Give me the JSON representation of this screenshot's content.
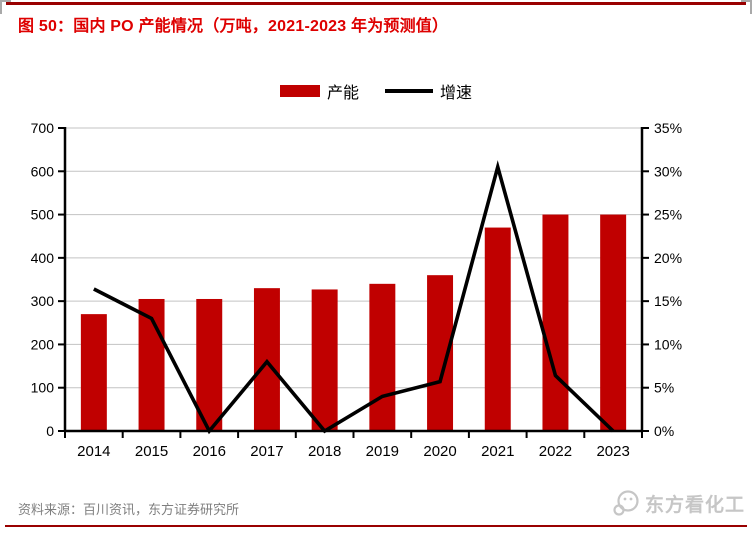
{
  "header": {
    "title": "图 50：国内 PO 产能情况（万吨，2021-2023 年为预测值）"
  },
  "legend": {
    "items": [
      {
        "label": "产能",
        "swatch": "bar",
        "color": "#c00000"
      },
      {
        "label": "增速",
        "swatch": "line",
        "color": "#000000"
      }
    ]
  },
  "chart_data": {
    "type": "bar+line",
    "title": "国内 PO 产能情况（万吨，2021-2023 年为预测值）",
    "categories": [
      "2014",
      "2015",
      "2016",
      "2017",
      "2018",
      "2019",
      "2020",
      "2021",
      "2022",
      "2023"
    ],
    "series": [
      {
        "name": "产能",
        "type": "bar",
        "axis": "left",
        "color": "#c00000",
        "values": [
          270,
          305,
          305,
          330,
          327,
          340,
          360,
          470,
          500,
          500
        ]
      },
      {
        "name": "增速",
        "type": "line",
        "axis": "right",
        "color": "#000000",
        "values": [
          16.4,
          13.0,
          0,
          8.0,
          0,
          4.0,
          5.7,
          30.5,
          6.4,
          0
        ]
      }
    ],
    "left_axis": {
      "min": 0,
      "max": 700,
      "tick_values": [
        0,
        100,
        200,
        300,
        400,
        500,
        600,
        700
      ],
      "tick_labels": [
        "0",
        "100",
        "200",
        "300",
        "400",
        "500",
        "600",
        "700"
      ]
    },
    "right_axis": {
      "min": 0,
      "max": 35,
      "tick_values": [
        0,
        5,
        10,
        15,
        20,
        25,
        30,
        35
      ],
      "tick_labels": [
        "0%",
        "5%",
        "10%",
        "15%",
        "20%",
        "25%",
        "30%",
        "35%"
      ]
    },
    "grid": true,
    "grid_color": "#c3c3c3",
    "axis_color": "#000000",
    "legend_position": "top-center"
  },
  "footer": {
    "source": "资料来源：百川资讯，东方证券研究所",
    "watermark": "东方看化工"
  },
  "colors": {
    "bar_red": "#c00000",
    "title_red": "#de0000",
    "rule_dark_red": "#990000",
    "grid_gray": "#c3c3c3",
    "source_gray": "#7f7f7f",
    "watermark_gray": "#c6c6c6"
  }
}
